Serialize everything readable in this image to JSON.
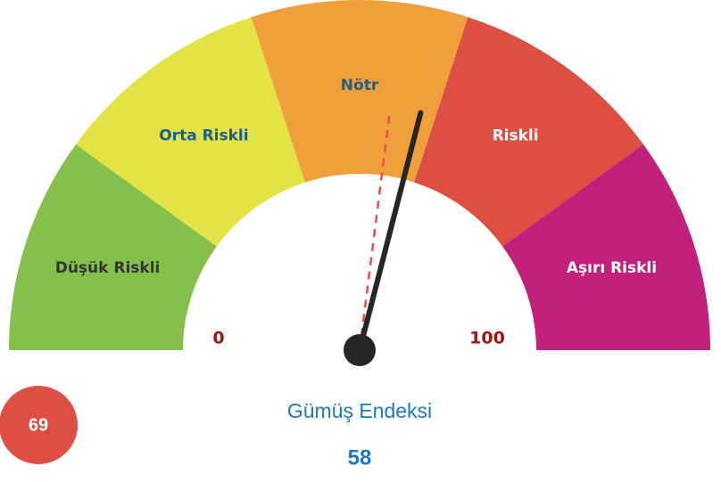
{
  "chart_data": {
    "type": "gauge",
    "title": "Gümüş Endeksi",
    "value": 58,
    "reference_value": 54,
    "badge": 69,
    "badge_color": "#dc4f42",
    "ylim": [
      0,
      100
    ],
    "yticks": [
      0,
      100
    ],
    "segments": [
      {
        "name": "Düşük Riskli",
        "color": "#86c04c",
        "label_color": "#333333",
        "from": 0,
        "to": 20
      },
      {
        "name": "Orta Riskli",
        "color": "#e3e345",
        "label_color": "#1d5e8c",
        "from": 20,
        "to": 40
      },
      {
        "name": "Nötr",
        "color": "#f0a03b",
        "label_color": "#1d5e8c",
        "from": 40,
        "to": 60
      },
      {
        "name": "Riskli",
        "color": "#dc4f42",
        "label_color": "#ffffff",
        "from": 60,
        "to": 80
      },
      {
        "name": "Aşırı Riskli",
        "color": "#c1207b",
        "label_color": "#ffffff",
        "from": 80,
        "to": 100
      }
    ]
  }
}
